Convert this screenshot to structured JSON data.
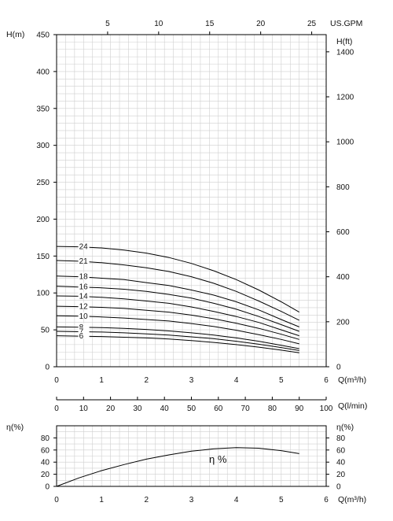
{
  "chart_data": [
    {
      "type": "line",
      "name": "head-curves",
      "y_left_label": "H(m)",
      "y_right_label": "H(ft)",
      "x_bottom_label": "Q(m³/h)",
      "x_top_label": "US.GPM",
      "x_ticks": [
        "0",
        "1",
        "2",
        "3",
        "4",
        "5",
        "6"
      ],
      "x_top_ticks": [
        "5",
        "10",
        "15",
        "20",
        "25"
      ],
      "y_ticks": [
        "0",
        "50",
        "100",
        "150",
        "200",
        "250",
        "300",
        "350",
        "400",
        "450"
      ],
      "y_right_ticks": [
        "0",
        "200",
        "400",
        "600",
        "800",
        "1000",
        "1200",
        "1400"
      ],
      "xlim": [
        0,
        6
      ],
      "ylim": [
        0,
        450
      ],
      "x_top_max": 26.42,
      "y_right_max": 1476.4,
      "grid": true,
      "x": [
        0,
        0.5,
        1,
        1.5,
        2,
        2.5,
        3,
        3.5,
        4,
        4.5,
        5,
        5.4
      ],
      "series": [
        {
          "name": "24",
          "values": [
            163,
            162.5,
            161,
            158,
            154,
            148,
            140,
            130,
            118,
            104,
            88,
            74
          ]
        },
        {
          "name": "21",
          "values": [
            144,
            143,
            141,
            138,
            134,
            129,
            122,
            113,
            102,
            89,
            75,
            63
          ]
        },
        {
          "name": "18",
          "values": [
            123,
            122,
            120,
            118,
            114,
            110,
            104,
            97,
            88,
            77,
            64,
            54
          ]
        },
        {
          "name": "16",
          "values": [
            109,
            108,
            107,
            105,
            102,
            98,
            93,
            86,
            78,
            68,
            57,
            48
          ]
        },
        {
          "name": "14",
          "values": [
            96,
            95.5,
            94,
            92,
            89,
            86,
            81,
            75,
            68,
            60,
            50,
            42
          ]
        },
        {
          "name": "12",
          "values": [
            82,
            81.5,
            80.5,
            79,
            76.5,
            74,
            70,
            65,
            59,
            52,
            44,
            37
          ]
        },
        {
          "name": "10",
          "values": [
            69,
            68.5,
            67.5,
            66,
            64,
            62,
            58.5,
            54.5,
            49.5,
            43.5,
            37,
            31
          ]
        },
        {
          "name": "8",
          "values": [
            54,
            53.5,
            53,
            52,
            50.5,
            48.5,
            46,
            43,
            39,
            34.5,
            29,
            24.5
          ]
        },
        {
          "name": "7",
          "values": [
            48,
            47.5,
            47,
            46,
            44.5,
            43,
            40.5,
            38,
            34.5,
            30.5,
            26,
            22
          ]
        },
        {
          "name": "6",
          "values": [
            42,
            41.5,
            41,
            40,
            39,
            37.5,
            35.5,
            33,
            30,
            26.5,
            22.5,
            19
          ]
        }
      ]
    },
    {
      "type": "axis",
      "name": "flow-lmin-axis",
      "label": "Q(l/min)",
      "ticks": [
        "0",
        "10",
        "20",
        "30",
        "40",
        "50",
        "60",
        "70",
        "80",
        "90",
        "100"
      ],
      "range": [
        0,
        100
      ]
    },
    {
      "type": "line",
      "name": "efficiency-curve",
      "y_left_label": "η(%)",
      "y_right_label": "η(%)",
      "x_label": "Q(m³/h)",
      "annotation": "η %",
      "x_ticks": [
        "0",
        "1",
        "2",
        "3",
        "4",
        "5",
        "6"
      ],
      "y_ticks": [
        "0",
        "20",
        "40",
        "60",
        "80"
      ],
      "xlim": [
        0,
        6
      ],
      "ylim": [
        0,
        100
      ],
      "grid": true,
      "x": [
        0,
        0.5,
        1,
        1.5,
        2,
        2.5,
        3,
        3.5,
        4,
        4.5,
        5,
        5.4
      ],
      "series": [
        {
          "name": "",
          "values": [
            0,
            14,
            26,
            36,
            45,
            52,
            58,
            62,
            64,
            63,
            59,
            54
          ]
        }
      ]
    }
  ]
}
